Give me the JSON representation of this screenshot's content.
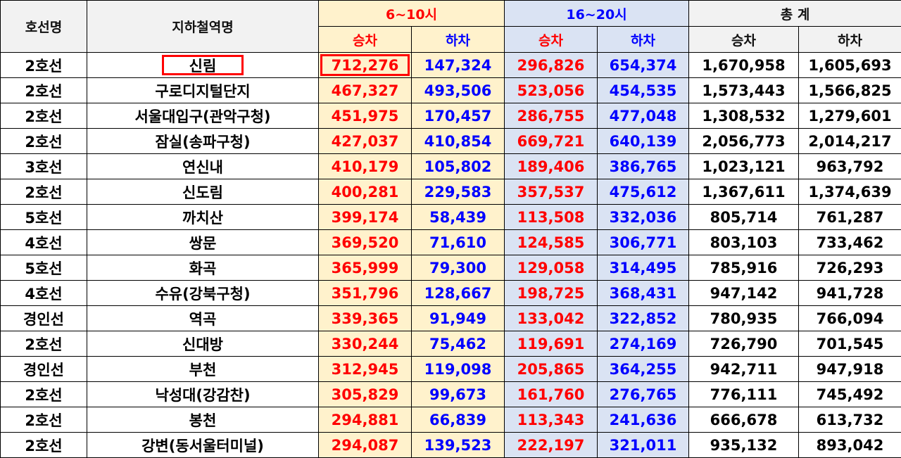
{
  "header": {
    "line": "호선명",
    "station": "지하철역명",
    "group_am": "6~10시",
    "group_pm": "16~20시",
    "group_total": "총 계",
    "board": "승차",
    "alight": "하차"
  },
  "colors": {
    "am_bg": "#fff2cc",
    "pm_bg": "#dae3f3",
    "board": "#ff0000",
    "alight": "#0000ff",
    "highlight": "#ff0000"
  },
  "rows": [
    {
      "line": "2호선",
      "station": "신림",
      "am_board": "712,276",
      "am_alight": "147,324",
      "pm_board": "296,826",
      "pm_alight": "654,374",
      "total_board": "1,670,958",
      "total_alight": "1,605,693"
    },
    {
      "line": "2호선",
      "station": "구로디지털단지",
      "am_board": "467,327",
      "am_alight": "493,506",
      "pm_board": "523,056",
      "pm_alight": "454,535",
      "total_board": "1,573,443",
      "total_alight": "1,566,825"
    },
    {
      "line": "2호선",
      "station": "서울대입구(관악구청)",
      "am_board": "451,975",
      "am_alight": "170,457",
      "pm_board": "286,755",
      "pm_alight": "477,048",
      "total_board": "1,308,532",
      "total_alight": "1,279,601"
    },
    {
      "line": "2호선",
      "station": "잠실(송파구청)",
      "am_board": "427,037",
      "am_alight": "410,854",
      "pm_board": "669,721",
      "pm_alight": "640,139",
      "total_board": "2,056,773",
      "total_alight": "2,014,217"
    },
    {
      "line": "3호선",
      "station": "연신내",
      "am_board": "410,179",
      "am_alight": "105,802",
      "pm_board": "189,406",
      "pm_alight": "386,765",
      "total_board": "1,023,121",
      "total_alight": "963,792"
    },
    {
      "line": "2호선",
      "station": "신도림",
      "am_board": "400,281",
      "am_alight": "229,583",
      "pm_board": "357,537",
      "pm_alight": "475,612",
      "total_board": "1,367,611",
      "total_alight": "1,374,639"
    },
    {
      "line": "5호선",
      "station": "까치산",
      "am_board": "399,174",
      "am_alight": "58,439",
      "pm_board": "113,508",
      "pm_alight": "332,036",
      "total_board": "805,714",
      "total_alight": "761,287"
    },
    {
      "line": "4호선",
      "station": "쌍문",
      "am_board": "369,520",
      "am_alight": "71,610",
      "pm_board": "124,585",
      "pm_alight": "306,771",
      "total_board": "803,103",
      "total_alight": "733,462"
    },
    {
      "line": "5호선",
      "station": "화곡",
      "am_board": "365,999",
      "am_alight": "79,300",
      "pm_board": "129,058",
      "pm_alight": "314,495",
      "total_board": "785,916",
      "total_alight": "726,293"
    },
    {
      "line": "4호선",
      "station": "수유(강북구청)",
      "am_board": "351,796",
      "am_alight": "128,667",
      "pm_board": "198,725",
      "pm_alight": "368,431",
      "total_board": "947,142",
      "total_alight": "941,728"
    },
    {
      "line": "경인선",
      "station": "역곡",
      "am_board": "339,365",
      "am_alight": "91,949",
      "pm_board": "133,042",
      "pm_alight": "322,852",
      "total_board": "780,935",
      "total_alight": "766,094"
    },
    {
      "line": "2호선",
      "station": "신대방",
      "am_board": "330,244",
      "am_alight": "75,462",
      "pm_board": "119,691",
      "pm_alight": "274,169",
      "total_board": "726,790",
      "total_alight": "701,545"
    },
    {
      "line": "경인선",
      "station": "부천",
      "am_board": "312,945",
      "am_alight": "119,098",
      "pm_board": "205,865",
      "pm_alight": "364,255",
      "total_board": "942,711",
      "total_alight": "947,918"
    },
    {
      "line": "2호선",
      "station": "낙성대(강감찬)",
      "am_board": "305,829",
      "am_alight": "99,673",
      "pm_board": "161,760",
      "pm_alight": "276,765",
      "total_board": "776,111",
      "total_alight": "745,492"
    },
    {
      "line": "2호선",
      "station": "봉천",
      "am_board": "294,881",
      "am_alight": "66,839",
      "pm_board": "113,343",
      "pm_alight": "241,636",
      "total_board": "666,678",
      "total_alight": "613,732"
    },
    {
      "line": "2호선",
      "station": "강변(동서울터미널)",
      "am_board": "294,087",
      "am_alight": "139,523",
      "pm_board": "222,197",
      "pm_alight": "321,011",
      "total_board": "935,132",
      "total_alight": "893,042"
    }
  ]
}
